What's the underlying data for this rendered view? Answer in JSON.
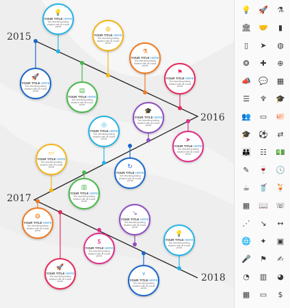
{
  "years": [
    "2015",
    "2016",
    "2017",
    "2018"
  ],
  "node": {
    "title_a": "YOUR TITLE",
    "title_b": "HERE",
    "description": "Text describing lasting situation with all crucial points"
  },
  "milestones": [
    {
      "color": "#25b4e6",
      "icon": "bulb-icon",
      "glyph": "💡"
    },
    {
      "color": "#1a67c9",
      "icon": "rocket-icon",
      "glyph": "🚀"
    },
    {
      "color": "#49b84a",
      "icon": "book-icon",
      "glyph": "▤"
    },
    {
      "color": "#f5b51a",
      "icon": "globe-icon",
      "glyph": "◍"
    },
    {
      "color": "#f07a20",
      "icon": "lab-icon",
      "glyph": "⚗"
    },
    {
      "color": "#e8275a",
      "icon": "flag-icon",
      "glyph": "⚑"
    },
    {
      "color": "#8e4fc0",
      "icon": "mortarboard-icon",
      "glyph": "🎓"
    },
    {
      "color": "#e02e8a",
      "icon": "paper-plane-icon",
      "glyph": "➤"
    },
    {
      "color": "#25b4e6",
      "icon": "target-icon",
      "glyph": "◎"
    },
    {
      "color": "#f5b51a",
      "icon": "laptop-icon",
      "glyph": "▭"
    },
    {
      "color": "#1a67c9",
      "icon": "refresh-icon",
      "glyph": "↻"
    },
    {
      "color": "#49b84a",
      "icon": "clipboard-icon",
      "glyph": "▥"
    },
    {
      "color": "#f07a20",
      "icon": "award-icon",
      "glyph": "❂"
    },
    {
      "color": "#8e4fc0",
      "icon": "chart-icon",
      "glyph": "↘"
    },
    {
      "color": "#e02e8a",
      "icon": "money-bag-icon",
      "glyph": "$"
    },
    {
      "color": "#25b4e6",
      "icon": "bulb-icon",
      "glyph": "💡"
    },
    {
      "color": "#e8275a",
      "icon": "rocket-icon",
      "glyph": "🚀"
    },
    {
      "color": "#1a67c9",
      "icon": "tie-icon",
      "glyph": "♆"
    }
  ],
  "icon_panel": [
    "bulb-icon",
    "rocket-icon",
    "lab-icon",
    "bank-icon",
    "handshake-icon",
    "bar-chart-icon",
    "phone-icon",
    "paper-plane-icon",
    "basketball-icon",
    "award-icon",
    "puzzle-icon",
    "target-icon",
    "megaphone-icon",
    "chat-icon",
    "calculator-icon",
    "list-icon",
    "tie-icon",
    "mortarboard-icon",
    "people-icon",
    "monitor-icon",
    "piggy-bank-icon",
    "graduation-icon",
    "soccer-icon",
    "signpost-icon",
    "users-icon",
    "flowchart-icon",
    "money-icon",
    "pen-icon",
    "wine-icon",
    "clock-icon",
    "coffee-icon",
    "cup-icon",
    "drink-icon",
    "calendar-icon",
    "book-icon",
    "phone-call-icon",
    "line-chart-icon",
    "trend-down-icon",
    "arrows-icon",
    "globe-icon",
    "stars-icon",
    "presentation-icon",
    "microphone-icon",
    "flag-icon",
    "teacher-icon",
    "pie-icon",
    "bar-icon",
    "pie-chart-icon",
    "schedule-icon",
    "laptop-icon",
    "bag-icon"
  ]
}
